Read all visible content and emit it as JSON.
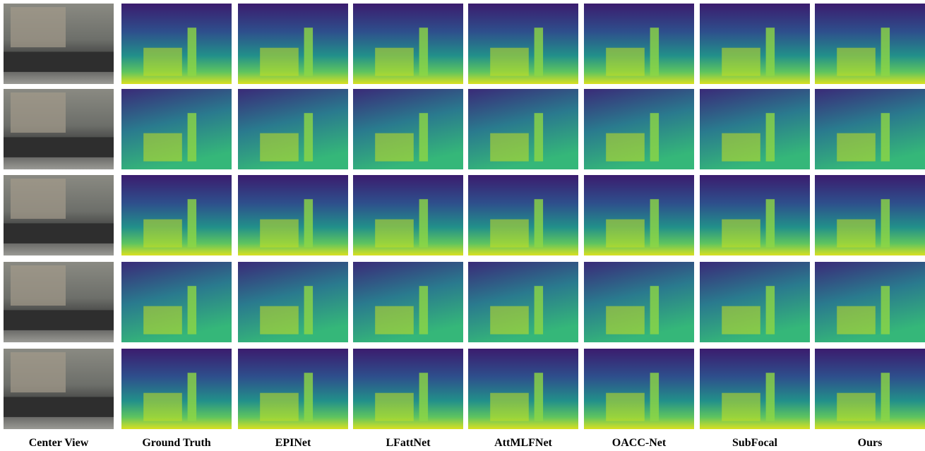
{
  "figure": {
    "columns": [
      "Center View",
      "Ground Truth",
      "EPINet",
      "LFattNet",
      "AttMLFNet",
      "OACC-Net",
      "SubFocal",
      "Ours"
    ]
  }
}
